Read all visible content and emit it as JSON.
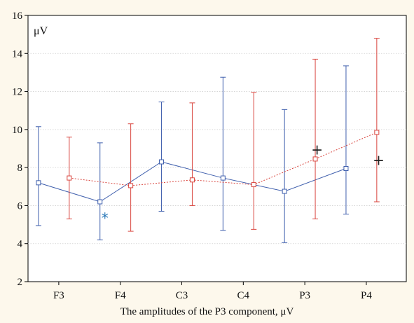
{
  "chart_data": {
    "type": "line",
    "categories": [
      "F3",
      "F4",
      "C3",
      "C4",
      "P3",
      "P4"
    ],
    "ylim": [
      2,
      16
    ],
    "yticks": [
      2,
      4,
      6,
      8,
      10,
      12,
      14,
      16
    ],
    "ylabel": "μV",
    "caption": "The amplitudes of the P3 component, μV",
    "grid": true,
    "series": [
      {
        "color": "#3f5fad",
        "line_style": "solid",
        "values": [
          7.2,
          6.2,
          8.3,
          7.45,
          6.75,
          7.95
        ],
        "lower": [
          4.95,
          4.2,
          5.7,
          4.7,
          4.05,
          5.55
        ],
        "upper": [
          10.15,
          9.3,
          11.45,
          12.75,
          11.05,
          13.35
        ]
      },
      {
        "color": "#d9453e",
        "line_style": "dotted",
        "values": [
          7.45,
          7.05,
          7.35,
          7.1,
          8.45,
          9.85
        ],
        "lower": [
          5.3,
          4.65,
          6.0,
          4.75,
          5.3,
          6.2
        ],
        "upper": [
          9.6,
          10.3,
          11.4,
          11.95,
          13.7,
          14.8
        ]
      }
    ],
    "annotations": [
      {
        "text": "*",
        "color": "#2a78b8",
        "category_index": 0.75,
        "y": 5.3
      },
      {
        "text": "+",
        "color": "#222222",
        "category_index": 4.2,
        "y": 8.9
      },
      {
        "text": "+",
        "color": "#222222",
        "category_index": 5.2,
        "y": 8.35
      }
    ]
  }
}
